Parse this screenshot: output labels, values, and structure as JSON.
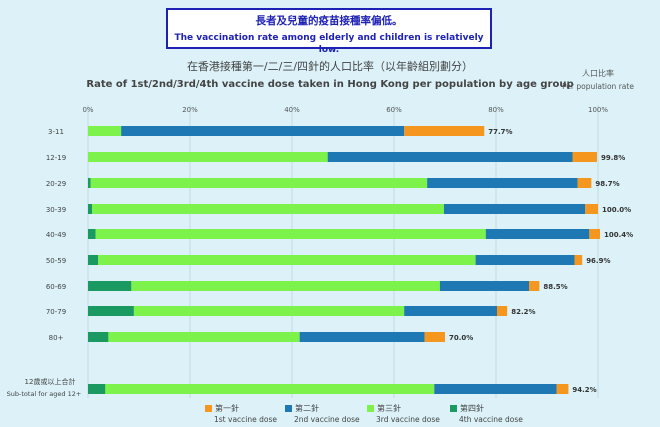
{
  "banner": {
    "zh": "長者及兒童的疫苗接種率偏低。",
    "en": "The vaccination rate among elderly and children is relatively low."
  },
  "titles": {
    "zh": "在香港接種第一/二/三/四針的人口比率（以年齡組別劃分）",
    "en": "Rate of 1st/2nd/3rd/4th vaccine dose taken in Hong Kong per population by age group",
    "unit_zh": "人口比率",
    "unit_en": "Per population rate"
  },
  "colors": {
    "dose1": "#f5961e",
    "dose2": "#1e78b4",
    "dose3": "#7cf24a",
    "dose4": "#1a9a60"
  },
  "chart_data": {
    "type": "bar",
    "orientation": "horizontal",
    "stacked": true,
    "xlim": [
      0,
      100
    ],
    "x_ticks": [
      "0%",
      "20%",
      "40%",
      "60%",
      "80%",
      "100%"
    ],
    "categories": [
      "3-11",
      "12-19",
      "20-29",
      "30-39",
      "40-49",
      "50-59",
      "60-69",
      "70-79",
      "80+",
      "12歲或以上合計 Sub-total for aged 12+"
    ],
    "category_labels": [
      {
        "zh": "3-11",
        "en": ""
      },
      {
        "zh": "12-19",
        "en": ""
      },
      {
        "zh": "20-29",
        "en": ""
      },
      {
        "zh": "30-39",
        "en": ""
      },
      {
        "zh": "40-49",
        "en": ""
      },
      {
        "zh": "50-59",
        "en": ""
      },
      {
        "zh": "60-69",
        "en": ""
      },
      {
        "zh": "70-79",
        "en": ""
      },
      {
        "zh": "80+",
        "en": ""
      },
      {
        "zh": "12歲或以上合計",
        "en": "Sub-total for aged 12+"
      }
    ],
    "segments_note": "each segment value = share of population whose highest dose is that dose; 1st-dose rate = total",
    "series": [
      {
        "name": "第四針 4th vaccine dose",
        "key": "dose4",
        "values": [
          0.0,
          0.0,
          0.5,
          0.8,
          1.5,
          2.0,
          8.5,
          9.0,
          4.0,
          3.4
        ]
      },
      {
        "name": "第三針 3rd vaccine dose",
        "key": "dose3",
        "values": [
          6.5,
          47.0,
          66.0,
          69.0,
          76.5,
          74.0,
          60.5,
          53.0,
          37.5,
          64.5
        ]
      },
      {
        "name": "第二針 2nd vaccine dose",
        "key": "dose2",
        "values": [
          55.5,
          48.0,
          29.5,
          27.7,
          20.3,
          19.4,
          17.5,
          18.2,
          24.5,
          24.0
        ]
      },
      {
        "name": "第一針 1st vaccine dose",
        "key": "dose1",
        "values": [
          15.7,
          4.8,
          2.7,
          2.5,
          2.1,
          1.5,
          2.0,
          2.0,
          4.0,
          2.3
        ]
      }
    ],
    "totals": [
      "77.7%",
      "99.8%",
      "98.7%",
      "100.0%",
      "100.4%",
      "96.9%",
      "88.5%",
      "82.2%",
      "70.0%",
      "94.2%"
    ],
    "legend": [
      {
        "zh": "第一針",
        "en": "1st vaccine dose",
        "key": "dose1"
      },
      {
        "zh": "第二針",
        "en": "2nd vaccine dose",
        "key": "dose2"
      },
      {
        "zh": "第三針",
        "en": "3rd vaccine dose",
        "key": "dose3"
      },
      {
        "zh": "第四針",
        "en": "4th vaccine dose",
        "key": "dose4"
      }
    ]
  }
}
